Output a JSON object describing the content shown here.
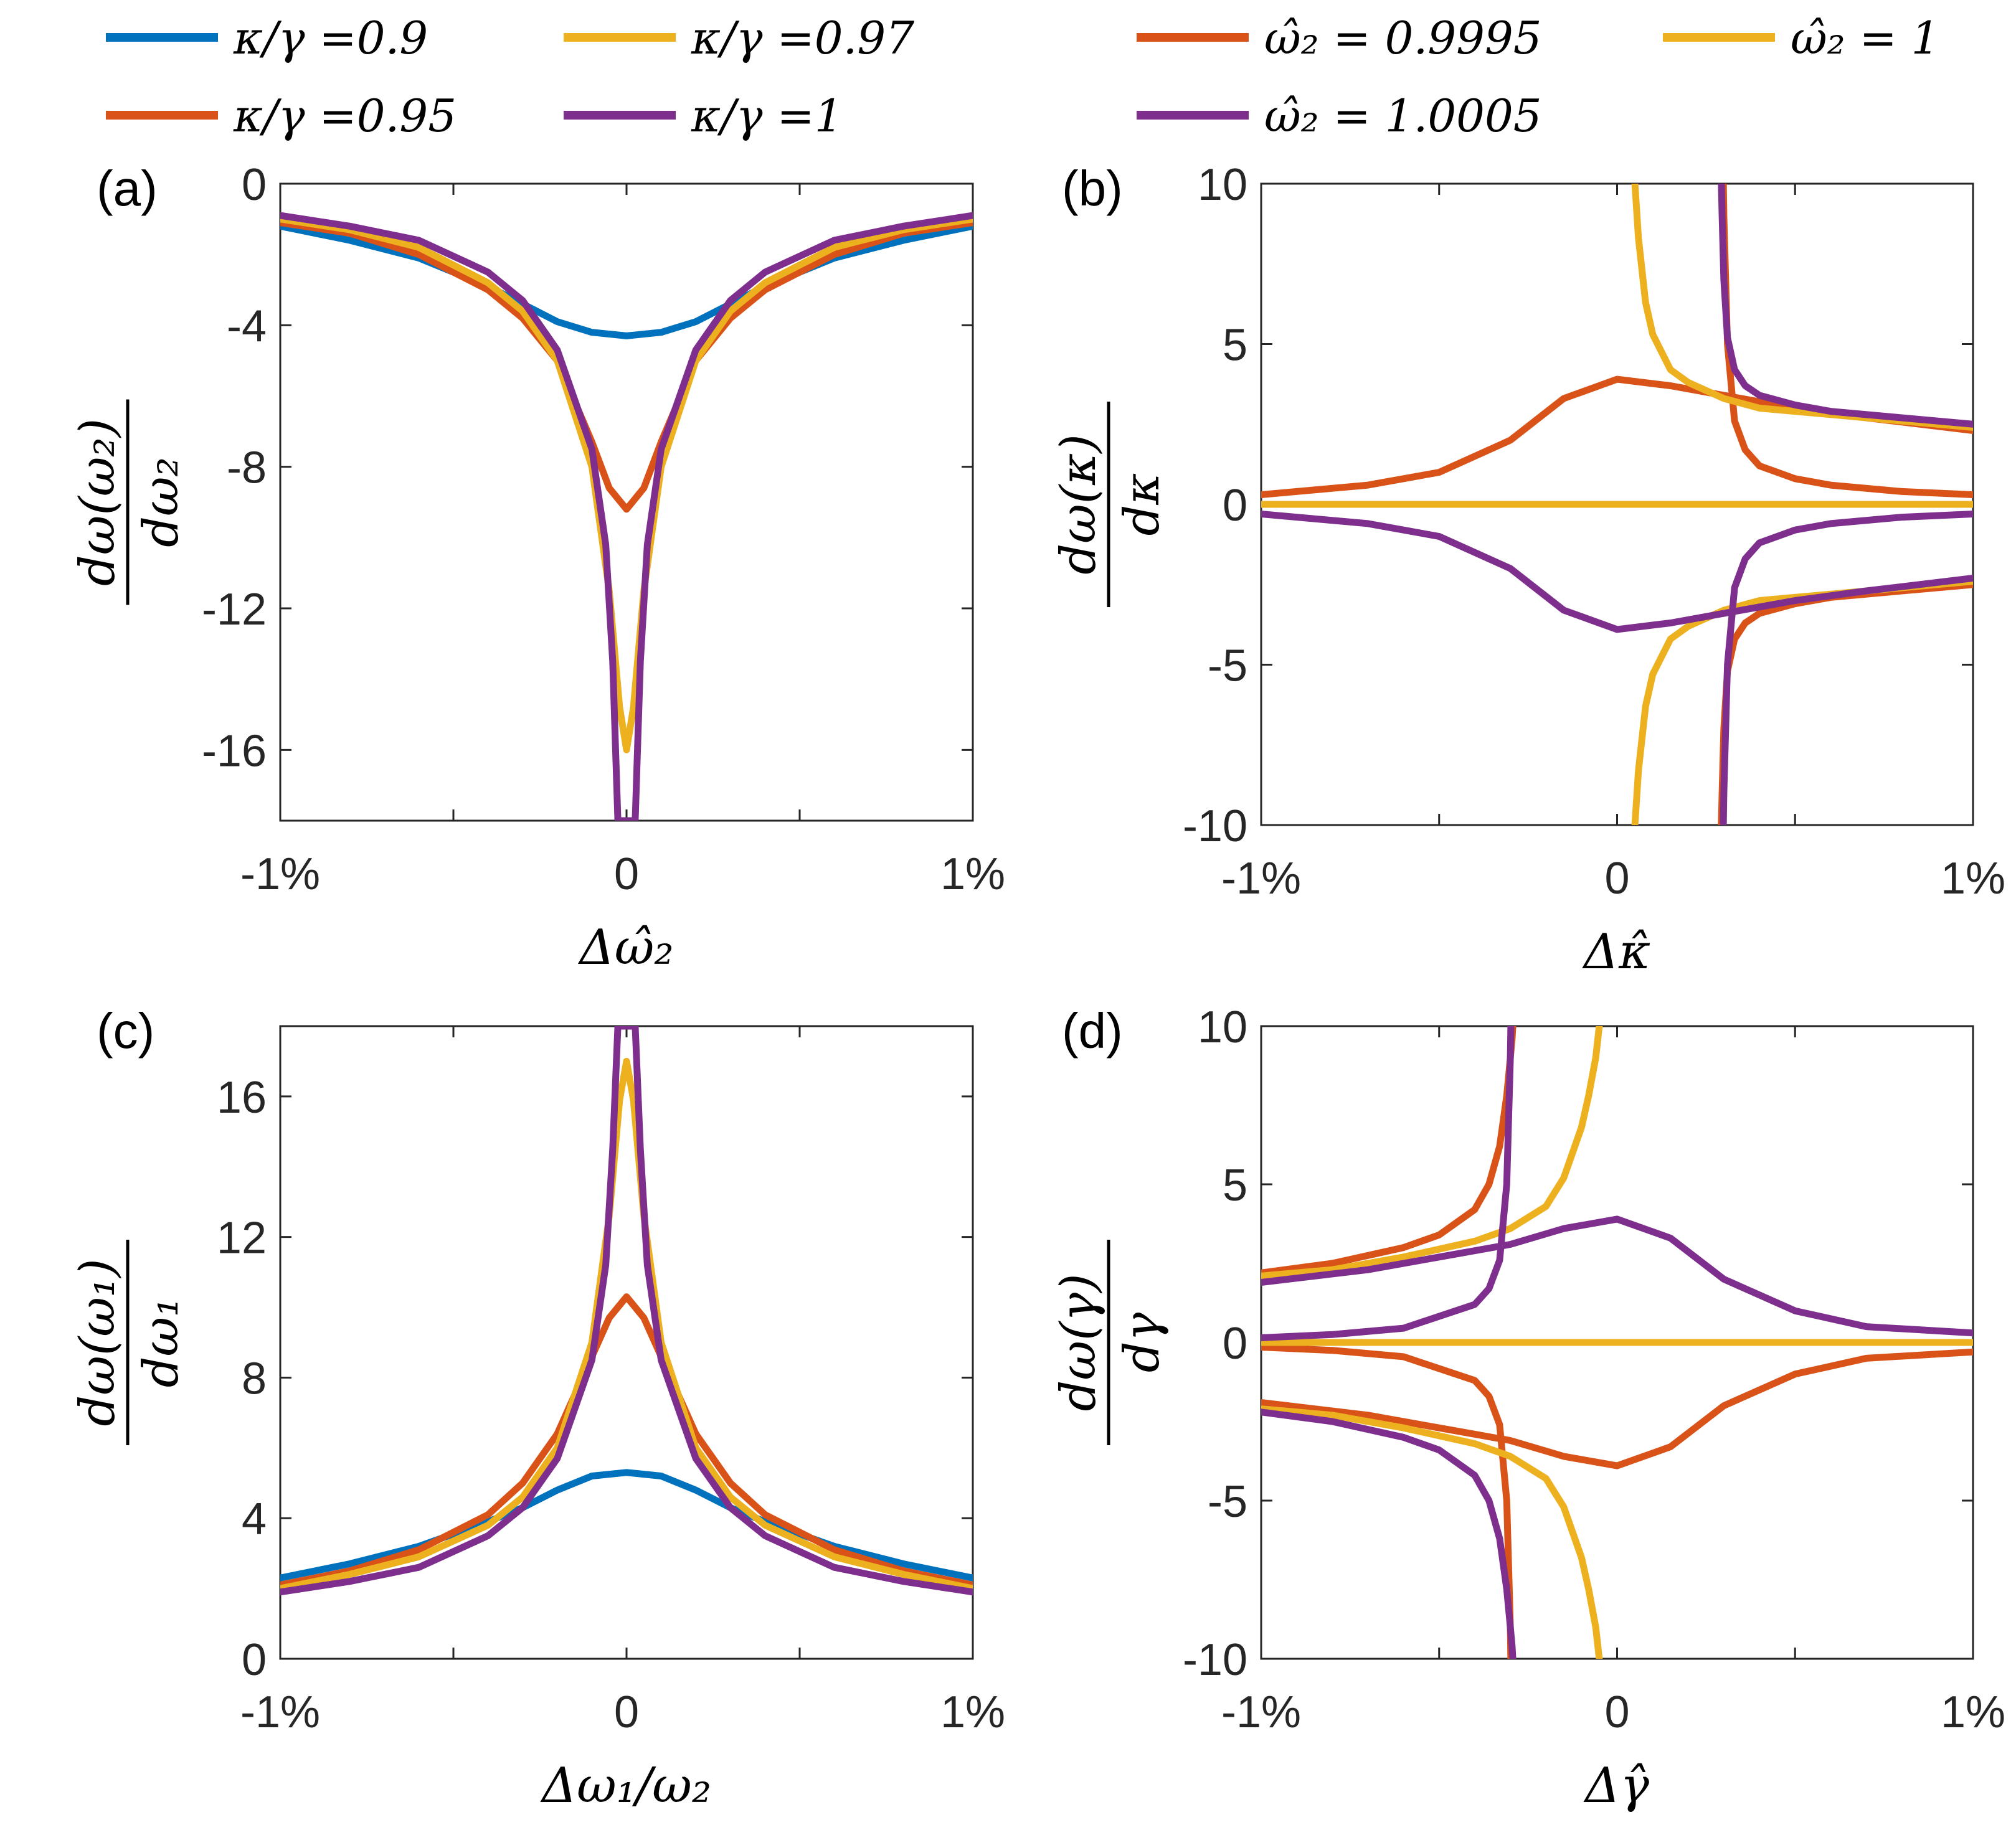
{
  "colors": {
    "blue": "#0072BD",
    "orange": "#D95319",
    "yellow": "#EDB120",
    "purple": "#7E2F8E"
  },
  "legend_left": [
    {
      "text": "κ/γ =0.9",
      "color": "#0072BD"
    },
    {
      "text": "κ/γ =0.97",
      "color": "#EDB120"
    },
    {
      "text": "κ/γ =0.95",
      "color": "#D95319"
    },
    {
      "text": "κ/γ =1",
      "color": "#7E2F8E"
    }
  ],
  "legend_right": [
    {
      "text": "ω̂₂ = 0.9995",
      "color": "#D95319"
    },
    {
      "text": "ω̂₂ = 1",
      "color": "#EDB120"
    },
    {
      "text": "ω̂₂ = 1.0005",
      "color": "#7E2F8E"
    }
  ],
  "chart_data": [
    {
      "panel": "(a)",
      "type": "line",
      "xlabel": "Δω̂₂",
      "ylabel_num": "dω(ω₂)",
      "ylabel_den": "dω₂",
      "xlim": [
        -1,
        1
      ],
      "ylim": [
        -18,
        0
      ],
      "xticks": [
        -1,
        0,
        1
      ],
      "xtick_labels": [
        "-1%",
        "0",
        "1%"
      ],
      "yticks": [
        0,
        -4,
        -8,
        -12,
        -16
      ],
      "ytick_labels": [
        "0",
        "-4",
        "-8",
        "-12",
        "-16"
      ],
      "series": [
        {
          "name": "κ/γ =0.9",
          "color": "#0072BD",
          "x": [
            -1,
            -0.8,
            -0.6,
            -0.4,
            -0.3,
            -0.2,
            -0.1,
            0,
            0.1,
            0.2,
            0.3,
            0.4,
            0.6,
            0.8,
            1
          ],
          "y": [
            -1.2,
            -1.6,
            -2.1,
            -2.9,
            -3.4,
            -3.9,
            -4.2,
            -4.3,
            -4.2,
            -3.9,
            -3.4,
            -2.9,
            -2.1,
            -1.6,
            -1.2
          ]
        },
        {
          "name": "κ/γ =0.95",
          "color": "#D95319",
          "x": [
            -1,
            -0.8,
            -0.6,
            -0.4,
            -0.3,
            -0.2,
            -0.1,
            -0.05,
            0,
            0.05,
            0.1,
            0.2,
            0.3,
            0.4,
            0.6,
            0.8,
            1
          ],
          "y": [
            -1.1,
            -1.4,
            -2.0,
            -3.0,
            -3.8,
            -5.0,
            -7.3,
            -8.6,
            -9.2,
            -8.6,
            -7.3,
            -5.0,
            -3.8,
            -3.0,
            -2.0,
            -1.4,
            -1.1
          ]
        },
        {
          "name": "κ/γ =0.97",
          "color": "#EDB120",
          "x": [
            -1,
            -0.8,
            -0.6,
            -0.4,
            -0.3,
            -0.2,
            -0.1,
            -0.05,
            -0.02,
            0,
            0.02,
            0.05,
            0.1,
            0.2,
            0.3,
            0.4,
            0.6,
            0.8,
            1
          ],
          "y": [
            -1.0,
            -1.3,
            -1.8,
            -2.8,
            -3.6,
            -5.0,
            -8.0,
            -11.5,
            -14.8,
            -16.0,
            -14.8,
            -11.5,
            -8.0,
            -5.0,
            -3.6,
            -2.8,
            -1.8,
            -1.3,
            -1.0
          ]
        },
        {
          "name": "κ/γ =1",
          "color": "#7E2F8E",
          "x": [
            -1,
            -0.8,
            -0.6,
            -0.4,
            -0.3,
            -0.2,
            -0.1,
            -0.06,
            -0.04,
            -0.025,
            0.025,
            0.04,
            0.06,
            0.1,
            0.2,
            0.3,
            0.4,
            0.6,
            0.8,
            1
          ],
          "y": [
            -0.9,
            -1.2,
            -1.6,
            -2.5,
            -3.3,
            -4.7,
            -7.5,
            -10.2,
            -13.5,
            -18.0,
            -18.0,
            -13.5,
            -10.2,
            -7.5,
            -4.7,
            -3.3,
            -2.5,
            -1.6,
            -1.2,
            -0.9
          ]
        }
      ]
    },
    {
      "panel": "(b)",
      "type": "line",
      "xlabel": "Δκ̂",
      "ylabel_num": "dω(κ)",
      "ylabel_den": "dκ",
      "xlim": [
        -1,
        1
      ],
      "ylim": [
        -10,
        10
      ],
      "xticks": [
        -1,
        0,
        1
      ],
      "xtick_labels": [
        "-1%",
        "0",
        "1%"
      ],
      "yticks": [
        10,
        5,
        0,
        -5,
        -10
      ],
      "ytick_labels": [
        "10",
        "5",
        "0",
        "-5",
        "-10"
      ],
      "series": [
        {
          "name": "ω̂₂ = 0.9995",
          "color": "#D95319",
          "x": [
            -1,
            -0.7,
            -0.5,
            -0.3,
            -0.15,
            0,
            0.15,
            0.3,
            0.5,
            0.7,
            1
          ],
          "y": [
            0.3,
            0.6,
            1.0,
            2.0,
            3.3,
            3.9,
            3.7,
            3.4,
            3.0,
            2.7,
            2.3
          ]
        },
        {
          "name": "ω̂₂ = 0.9995",
          "color": "#D95319",
          "x": [
            0.293,
            0.295,
            0.3,
            0.31,
            0.33,
            0.36,
            0.4,
            0.5,
            0.6,
            0.8,
            1
          ],
          "y": [
            -10,
            -9.0,
            -7.0,
            -5.2,
            -4.2,
            -3.7,
            -3.4,
            -3.1,
            -2.9,
            -2.7,
            -2.5
          ]
        },
        {
          "name": "ω̂₂ = 0.9995",
          "color": "#D95319",
          "x": [
            0.2985,
            0.3,
            0.31,
            0.33,
            0.36,
            0.4,
            0.5,
            0.6,
            0.8,
            1
          ],
          "y": [
            10,
            9.0,
            5.0,
            2.6,
            1.7,
            1.2,
            0.8,
            0.6,
            0.4,
            0.3
          ]
        },
        {
          "name": "ω̂₂ = 1",
          "color": "#EDB120",
          "x": [
            -1,
            1
          ],
          "y": [
            0,
            0
          ]
        },
        {
          "name": "ω̂₂ = 1",
          "color": "#EDB120",
          "x": [
            0.05,
            0.06,
            0.08,
            0.1,
            0.15,
            0.2,
            0.3,
            0.4,
            0.6,
            0.8,
            1
          ],
          "y": [
            10,
            8.3,
            6.3,
            5.3,
            4.2,
            3.8,
            3.3,
            3.0,
            2.8,
            2.6,
            2.4
          ]
        },
        {
          "name": "ω̂₂ = 1",
          "color": "#EDB120",
          "x": [
            0.05,
            0.06,
            0.08,
            0.1,
            0.15,
            0.2,
            0.3,
            0.4,
            0.6,
            0.8,
            1
          ],
          "y": [
            -10,
            -8.3,
            -6.3,
            -5.3,
            -4.2,
            -3.8,
            -3.3,
            -3.0,
            -2.8,
            -2.6,
            -2.4
          ]
        },
        {
          "name": "ω̂₂ = 1.0005",
          "color": "#7E2F8E",
          "x": [
            -1,
            -0.7,
            -0.5,
            -0.3,
            -0.15,
            0,
            0.15,
            0.3,
            0.5,
            0.7,
            1
          ],
          "y": [
            -0.3,
            -0.6,
            -1.0,
            -2.0,
            -3.3,
            -3.9,
            -3.7,
            -3.4,
            -3.0,
            -2.7,
            -2.3
          ]
        },
        {
          "name": "ω̂₂ = 1.0005",
          "color": "#7E2F8E",
          "x": [
            0.293,
            0.295,
            0.3,
            0.31,
            0.33,
            0.36,
            0.4,
            0.5,
            0.6,
            0.8,
            1
          ],
          "y": [
            10,
            9.0,
            7.0,
            5.2,
            4.2,
            3.7,
            3.4,
            3.1,
            2.9,
            2.7,
            2.5
          ]
        },
        {
          "name": "ω̂₂ = 1.0005",
          "color": "#7E2F8E",
          "x": [
            0.2985,
            0.3,
            0.31,
            0.33,
            0.36,
            0.4,
            0.5,
            0.6,
            0.8,
            1
          ],
          "y": [
            -10,
            -9.0,
            -5.0,
            -2.6,
            -1.7,
            -1.2,
            -0.8,
            -0.6,
            -0.4,
            -0.3
          ]
        }
      ]
    },
    {
      "panel": "(c)",
      "type": "line",
      "xlabel": "Δω₁/ω₂",
      "ylabel_num": "dω(ω₁)",
      "ylabel_den": "dω₁",
      "xlim": [
        -1,
        1
      ],
      "ylim": [
        0,
        18
      ],
      "xticks": [
        -1,
        0,
        1
      ],
      "xtick_labels": [
        "-1%",
        "0",
        "1%"
      ],
      "yticks": [
        16,
        12,
        8,
        4,
        0
      ],
      "ytick_labels": [
        "16",
        "12",
        "8",
        "4",
        "0"
      ],
      "series": [
        {
          "name": "κ/γ =0.9",
          "color": "#0072BD",
          "x": [
            -1,
            -0.8,
            -0.6,
            -0.4,
            -0.3,
            -0.2,
            -0.1,
            0,
            0.1,
            0.2,
            0.3,
            0.4,
            0.6,
            0.8,
            1
          ],
          "y": [
            2.3,
            2.7,
            3.2,
            3.9,
            4.3,
            4.8,
            5.2,
            5.3,
            5.2,
            4.8,
            4.3,
            3.9,
            3.2,
            2.7,
            2.3
          ]
        },
        {
          "name": "κ/γ =0.95",
          "color": "#D95319",
          "x": [
            -1,
            -0.8,
            -0.6,
            -0.4,
            -0.3,
            -0.2,
            -0.1,
            -0.05,
            0,
            0.05,
            0.1,
            0.2,
            0.3,
            0.4,
            0.6,
            0.8,
            1
          ],
          "y": [
            2.1,
            2.5,
            3.1,
            4.1,
            5.0,
            6.4,
            8.6,
            9.7,
            10.3,
            9.7,
            8.6,
            6.4,
            5.0,
            4.1,
            3.1,
            2.5,
            2.1
          ]
        },
        {
          "name": "κ/γ =0.97",
          "color": "#EDB120",
          "x": [
            -1,
            -0.8,
            -0.6,
            -0.4,
            -0.3,
            -0.2,
            -0.1,
            -0.05,
            -0.02,
            0,
            0.02,
            0.05,
            0.1,
            0.2,
            0.3,
            0.4,
            0.6,
            0.8,
            1
          ],
          "y": [
            2.0,
            2.4,
            2.9,
            3.8,
            4.6,
            6.0,
            9.0,
            12.6,
            15.9,
            17.0,
            15.9,
            12.6,
            9.0,
            6.0,
            4.6,
            3.8,
            2.9,
            2.4,
            2.0
          ]
        },
        {
          "name": "κ/γ =1",
          "color": "#7E2F8E",
          "x": [
            -1,
            -0.8,
            -0.6,
            -0.4,
            -0.3,
            -0.2,
            -0.1,
            -0.06,
            -0.04,
            -0.025,
            0.025,
            0.04,
            0.06,
            0.1,
            0.2,
            0.3,
            0.4,
            0.6,
            0.8,
            1
          ],
          "y": [
            1.9,
            2.2,
            2.6,
            3.5,
            4.3,
            5.7,
            8.5,
            11.2,
            14.5,
            18.0,
            18.0,
            14.5,
            11.2,
            8.5,
            5.7,
            4.3,
            3.5,
            2.6,
            2.2,
            1.9
          ]
        }
      ]
    },
    {
      "panel": "(d)",
      "type": "line",
      "xlabel": "Δγ̂",
      "ylabel_num": "dω(γ)",
      "ylabel_den": "dγ",
      "xlim": [
        -1,
        1
      ],
      "ylim": [
        -10,
        10
      ],
      "xticks": [
        -1,
        0,
        1
      ],
      "xtick_labels": [
        "-1%",
        "0",
        "1%"
      ],
      "yticks": [
        10,
        5,
        0,
        -5,
        -10
      ],
      "ytick_labels": [
        "10",
        "5",
        "0",
        "-5",
        "-10"
      ],
      "series": [
        {
          "name": "ω̂₂ = 0.9995",
          "color": "#D95319",
          "x": [
            -1,
            -0.8,
            -0.6,
            -0.5,
            -0.4,
            -0.36,
            -0.33,
            -0.31,
            -0.3,
            -0.295,
            -0.293
          ],
          "y": [
            2.2,
            2.5,
            3.0,
            3.4,
            4.2,
            5.0,
            6.2,
            7.8,
            9.0,
            9.6,
            10
          ]
        },
        {
          "name": "ω̂₂ = 0.9995",
          "color": "#D95319",
          "x": [
            -1,
            -0.8,
            -0.6,
            -0.4,
            -0.36,
            -0.33,
            -0.31,
            -0.3,
            -0.2985
          ],
          "y": [
            -0.15,
            -0.25,
            -0.45,
            -1.2,
            -1.7,
            -2.6,
            -5.0,
            -9.0,
            -10
          ]
        },
        {
          "name": "ω̂₂ = 0.9995",
          "color": "#D95319",
          "x": [
            -1,
            -0.7,
            -0.5,
            -0.3,
            -0.15,
            0,
            0.15,
            0.3,
            0.5,
            0.7,
            1
          ],
          "y": [
            -1.9,
            -2.3,
            -2.7,
            -3.1,
            -3.6,
            -3.9,
            -3.3,
            -2.0,
            -1.0,
            -0.5,
            -0.3
          ]
        },
        {
          "name": "ω̂₂ = 1",
          "color": "#EDB120",
          "x": [
            -1,
            1
          ],
          "y": [
            0,
            0
          ]
        },
        {
          "name": "ω̂₂ = 1",
          "color": "#EDB120",
          "x": [
            -1,
            -0.8,
            -0.6,
            -0.4,
            -0.3,
            -0.2,
            -0.15,
            -0.1,
            -0.08,
            -0.06,
            -0.05
          ],
          "y": [
            2.1,
            2.3,
            2.7,
            3.2,
            3.6,
            4.3,
            5.2,
            6.8,
            7.8,
            9.0,
            10
          ]
        },
        {
          "name": "ω̂₂ = 1",
          "color": "#EDB120",
          "x": [
            -1,
            -0.8,
            -0.6,
            -0.4,
            -0.3,
            -0.2,
            -0.15,
            -0.1,
            -0.08,
            -0.06,
            -0.05
          ],
          "y": [
            -2.1,
            -2.3,
            -2.7,
            -3.2,
            -3.6,
            -4.3,
            -5.2,
            -6.8,
            -7.8,
            -9.0,
            -10
          ]
        },
        {
          "name": "ω̂₂ = 1.0005",
          "color": "#7E2F8E",
          "x": [
            -1,
            -0.8,
            -0.6,
            -0.4,
            -0.36,
            -0.33,
            -0.31,
            -0.3,
            -0.2985
          ],
          "y": [
            0.15,
            0.25,
            0.45,
            1.2,
            1.7,
            2.6,
            5.0,
            9.0,
            10
          ]
        },
        {
          "name": "ω̂₂ = 1.0005",
          "color": "#7E2F8E",
          "x": [
            -1,
            -0.7,
            -0.5,
            -0.3,
            -0.15,
            0,
            0.15,
            0.3,
            0.5,
            0.7,
            1
          ],
          "y": [
            1.9,
            2.3,
            2.7,
            3.1,
            3.6,
            3.9,
            3.3,
            2.0,
            1.0,
            0.5,
            0.3
          ]
        },
        {
          "name": "ω̂₂ = 1.0005",
          "color": "#7E2F8E",
          "x": [
            -1,
            -0.8,
            -0.6,
            -0.5,
            -0.4,
            -0.36,
            -0.33,
            -0.31,
            -0.3,
            -0.295,
            -0.293
          ],
          "y": [
            -2.2,
            -2.5,
            -3.0,
            -3.4,
            -4.2,
            -5.0,
            -6.2,
            -7.8,
            -9.0,
            -9.6,
            -10
          ]
        }
      ]
    }
  ]
}
